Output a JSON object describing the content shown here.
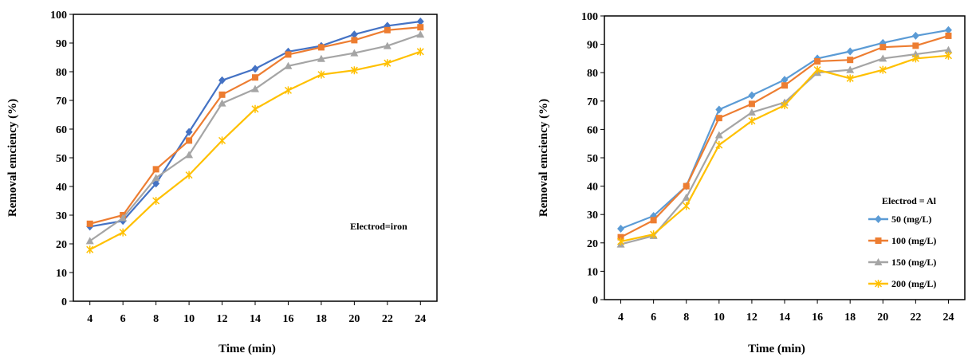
{
  "chart_data": [
    {
      "type": "line",
      "title": "",
      "xlabel": "Time (min)",
      "ylabel": "Removal emciency (%)",
      "x": [
        4,
        6,
        8,
        10,
        12,
        14,
        16,
        18,
        20,
        22,
        24
      ],
      "xlim": [
        3,
        25
      ],
      "ylim": [
        0,
        100
      ],
      "yticks": [
        0,
        10,
        20,
        30,
        40,
        50,
        60,
        70,
        80,
        90,
        100
      ],
      "annotation": "Electrod=iron",
      "legend": "none",
      "grid": false,
      "series": [
        {
          "color": "#4472C4",
          "marker": "diamond",
          "values": [
            26,
            28,
            41,
            59,
            77,
            81,
            87,
            89,
            93,
            96,
            97.5
          ]
        },
        {
          "color": "#ED7D31",
          "marker": "square",
          "values": [
            27,
            30,
            46,
            56,
            72,
            78,
            86,
            88.5,
            91,
            94.5,
            95.5
          ]
        },
        {
          "color": "#A5A5A5",
          "marker": "triangle",
          "values": [
            21,
            29,
            43,
            51,
            69,
            74,
            82,
            84.5,
            86.5,
            89,
            93
          ]
        },
        {
          "color": "#FFC000",
          "marker": "x",
          "values": [
            18,
            24,
            35,
            44,
            56,
            67,
            73.5,
            79,
            80.5,
            83,
            87
          ]
        }
      ]
    },
    {
      "type": "line",
      "title": "",
      "xlabel": "Time (min)",
      "ylabel": "Removal emciency (%)",
      "x": [
        4,
        6,
        8,
        10,
        12,
        14,
        16,
        18,
        20,
        22,
        24
      ],
      "xlim": [
        3,
        25
      ],
      "ylim": [
        0,
        100
      ],
      "yticks": [
        0,
        10,
        20,
        30,
        40,
        50,
        60,
        70,
        80,
        90,
        100
      ],
      "legend": "bottom-right",
      "legend_title": "Electrod = Al",
      "grid": false,
      "series": [
        {
          "name": "50 (mg/L)",
          "color": "#5B9BD5",
          "marker": "diamond",
          "values": [
            25,
            29.5,
            40,
            67,
            72,
            77.5,
            85,
            87.5,
            90.5,
            93,
            95
          ]
        },
        {
          "name": "100 (mg/L)",
          "color": "#ED7D31",
          "marker": "square",
          "values": [
            22,
            28,
            40,
            64,
            69,
            75.5,
            84,
            84.5,
            89,
            89.5,
            93
          ]
        },
        {
          "name": "150 (mg/L)",
          "color": "#A5A5A5",
          "marker": "triangle",
          "values": [
            19.5,
            22.5,
            36,
            58,
            66,
            69.5,
            80,
            81,
            85,
            86.5,
            88
          ]
        },
        {
          "name": "200 (mg/L)",
          "color": "#FFC000",
          "marker": "x",
          "values": [
            20.5,
            23,
            33,
            54.5,
            63,
            68.5,
            81,
            78,
            81,
            85,
            86
          ]
        }
      ]
    }
  ]
}
